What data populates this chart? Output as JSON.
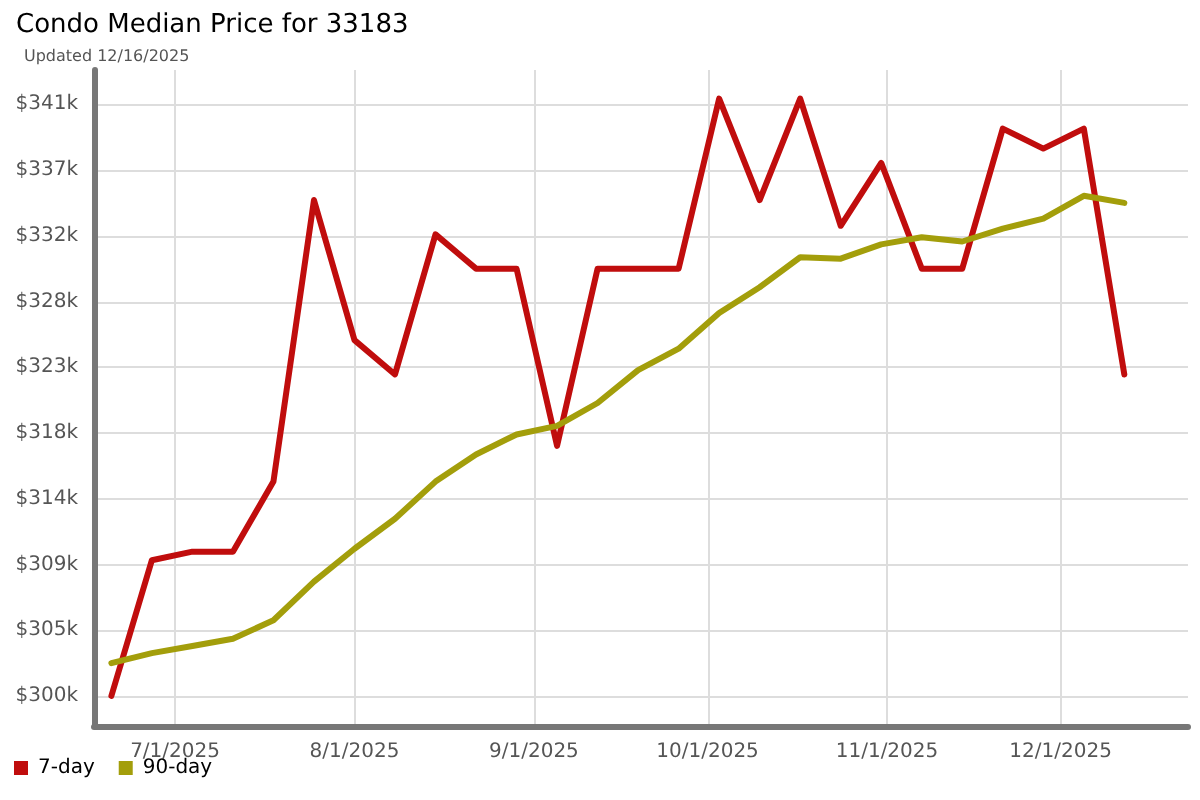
{
  "chart_data": {
    "type": "line",
    "title": "Condo Median Price for 33183",
    "subtitle": "Updated 12/16/2025",
    "x": [
      "2025-06-20",
      "2025-06-27",
      "2025-07-04",
      "2025-07-11",
      "2025-07-18",
      "2025-07-25",
      "2025-08-01",
      "2025-08-08",
      "2025-08-15",
      "2025-08-22",
      "2025-08-29",
      "2025-09-05",
      "2025-09-12",
      "2025-09-19",
      "2025-09-26",
      "2025-10-03",
      "2025-10-10",
      "2025-10-17",
      "2025-10-24",
      "2025-10-31",
      "2025-11-07",
      "2025-11-14",
      "2025-11-21",
      "2025-11-28",
      "2025-12-05",
      "2025-12-12"
    ],
    "series": [
      {
        "name": "7-day",
        "color": "#c00d0d",
        "values": [
          300.0,
          309.5,
          310.1,
          310.1,
          315.0,
          334.7,
          324.9,
          322.5,
          332.3,
          329.9,
          329.9,
          317.5,
          329.9,
          329.9,
          329.9,
          341.8,
          334.7,
          341.8,
          332.9,
          337.3,
          329.9,
          329.9,
          339.7,
          338.3,
          339.7,
          322.5
        ]
      },
      {
        "name": "90-day",
        "color": "#a39e0b",
        "values": [
          302.3,
          303.0,
          303.5,
          304.0,
          305.3,
          308.0,
          310.3,
          312.4,
          315.0,
          316.9,
          318.3,
          318.9,
          320.5,
          322.8,
          324.3,
          326.8,
          328.6,
          330.7,
          330.6,
          331.6,
          332.1,
          331.8,
          332.7,
          333.4,
          335.0,
          334.5
        ]
      }
    ],
    "xlim": [
      "2025-06-17",
      "2025-12-23"
    ],
    "xticks": [
      {
        "value": "2025-07-01",
        "label": "7/1/2025"
      },
      {
        "value": "2025-08-01",
        "label": "8/1/2025"
      },
      {
        "value": "2025-09-01",
        "label": "9/1/2025"
      },
      {
        "value": "2025-10-01",
        "label": "10/1/2025"
      },
      {
        "value": "2025-11-01",
        "label": "11/1/2025"
      },
      {
        "value": "2025-12-01",
        "label": "12/1/2025"
      }
    ],
    "ylim": [
      297.9,
      343.8
    ],
    "yticks": [
      {
        "value": 300,
        "label": "$300k"
      },
      {
        "value": 304.6,
        "label": "$305k"
      },
      {
        "value": 309.2,
        "label": "$309k"
      },
      {
        "value": 313.8,
        "label": "$314k"
      },
      {
        "value": 318.4,
        "label": "$318k"
      },
      {
        "value": 323,
        "label": "$323k"
      },
      {
        "value": 327.6,
        "label": "$328k"
      },
      {
        "value": 332.2,
        "label": "$332k"
      },
      {
        "value": 336.8,
        "label": "$337k"
      },
      {
        "value": 341.4,
        "label": "$341k"
      }
    ],
    "grid": true,
    "legend": "bottom left",
    "marker": "none",
    "line_style": "solid"
  }
}
